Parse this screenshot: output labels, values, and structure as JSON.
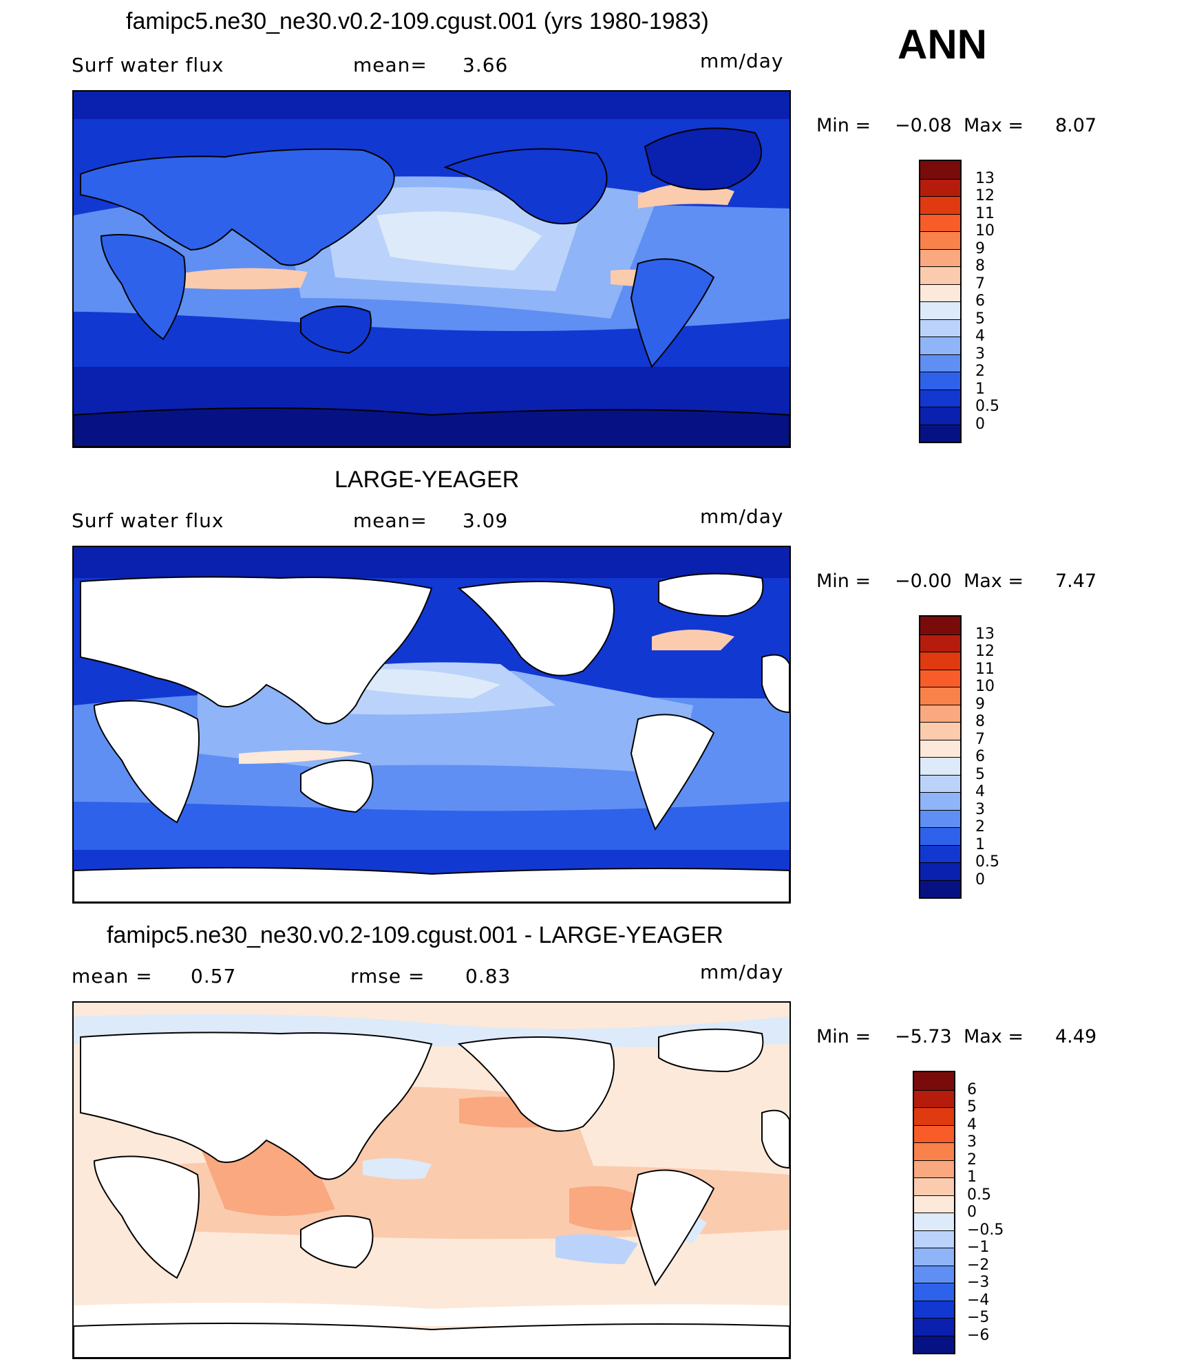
{
  "season": "ANN",
  "panels": [
    {
      "title": "famipc5.ne30_ne30.v0.2-109.cgust.001 (yrs 1980-1983)",
      "left_label": "Surf  water  flux",
      "mid_label": "mean=",
      "mid_value": "3.66",
      "right_label": "mm/day",
      "min_label": "Min  =",
      "min_value": "−0.08",
      "max_label": "Max  =",
      "max_value": "8.07",
      "ticks": [
        "13",
        "12",
        "11",
        "10",
        "9",
        "8",
        "7",
        "6",
        "5",
        "4",
        "3",
        "2",
        "1",
        "0.5",
        "0"
      ]
    },
    {
      "title": "LARGE-YEAGER",
      "left_label": "Surf  water  flux",
      "mid_label": "mean=",
      "mid_value": "3.09",
      "right_label": "mm/day",
      "min_label": "Min  =",
      "min_value": "−0.00",
      "max_label": "Max  =",
      "max_value": "7.47",
      "ticks": [
        "13",
        "12",
        "11",
        "10",
        "9",
        "8",
        "7",
        "6",
        "5",
        "4",
        "3",
        "2",
        "1",
        "0.5",
        "0"
      ]
    },
    {
      "title": "famipc5.ne30_ne30.v0.2-109.cgust.001 - LARGE-YEAGER",
      "left_label": "mean  =",
      "left_value": "0.57",
      "mid_label": "rmse  =",
      "mid_value": "0.83",
      "right_label": "mm/day",
      "min_label": "Min  =",
      "min_value": "−5.73",
      "max_label": "Max  =",
      "max_value": "4.49",
      "ticks": [
        "6",
        "5",
        "4",
        "3",
        "2",
        "1",
        "0.5",
        "0",
        "−0.5",
        "−1",
        "−2",
        "−3",
        "−4",
        "−5",
        "−6"
      ]
    }
  ],
  "colors": {
    "abs_scale": [
      "#7a0b0b",
      "#b51c0c",
      "#df3a10",
      "#f85c28",
      "#f9824b",
      "#f9a880",
      "#fbcbae",
      "#fde9d9",
      "#dceafa",
      "#bbd3fa",
      "#8fb4f7",
      "#5f8ff2",
      "#2e62ea",
      "#1238d2",
      "#0a20ae",
      "#061284"
    ],
    "diff_scale": [
      "#7a0b0b",
      "#b51c0c",
      "#df3a10",
      "#f85c28",
      "#f9824b",
      "#f9a880",
      "#fbcbae",
      "#fde9d9",
      "#dceafa",
      "#bbd3fa",
      "#8fb4f7",
      "#5f8ff2",
      "#2e62ea",
      "#1238d2",
      "#0a20ae",
      "#061284"
    ]
  }
}
